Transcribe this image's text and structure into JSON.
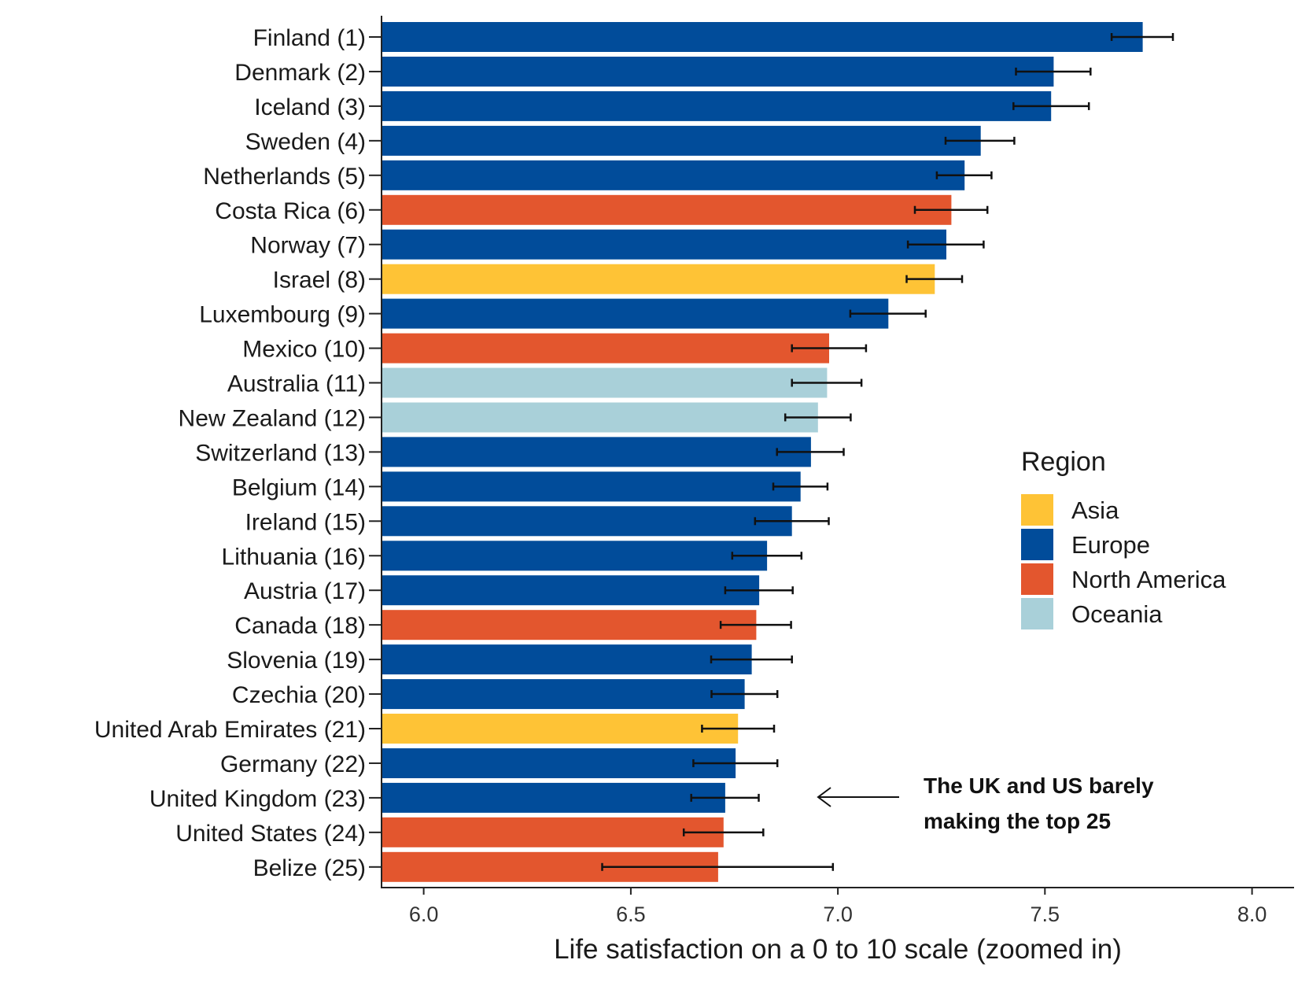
{
  "chart_data": {
    "type": "bar",
    "orientation": "horizontal",
    "title": "",
    "xlabel": "Life satisfaction on a 0 to 10 scale (zoomed in)",
    "ylabel": "",
    "xlim": [
      5.9,
      8.2
    ],
    "xticks": [
      6.0,
      6.5,
      7.0,
      7.5,
      8.0
    ],
    "xtick_labels": [
      "6.0",
      "6.5",
      "7.0",
      "7.5",
      "8.0"
    ],
    "grid": false,
    "legend": {
      "title": "Region",
      "placement": "right",
      "entries": [
        {
          "name": "Asia",
          "color": "#FEC336"
        },
        {
          "name": "Europe",
          "color": "#014C9A"
        },
        {
          "name": "North America",
          "color": "#E3562E"
        },
        {
          "name": "Oceania",
          "color": "#A9D0D9"
        }
      ]
    },
    "categories": [
      "Finland (1)",
      "Denmark (2)",
      "Iceland (3)",
      "Sweden (4)",
      "Netherlands (5)",
      "Costa Rica (6)",
      "Norway (7)",
      "Israel (8)",
      "Luxembourg (9)",
      "Mexico (10)",
      "Australia (11)",
      "New Zealand (12)",
      "Switzerland (13)",
      "Belgium (14)",
      "Ireland (15)",
      "Lithuania (16)",
      "Austria (17)",
      "Canada (18)",
      "Slovenia (19)",
      "Czechia (20)",
      "United Arab Emirates (21)",
      "Germany (22)",
      "United Kingdom (23)",
      "United States (24)",
      "Belize (25)"
    ],
    "regions": [
      "Europe",
      "Europe",
      "Europe",
      "Europe",
      "Europe",
      "North America",
      "Europe",
      "Asia",
      "Europe",
      "North America",
      "Oceania",
      "Oceania",
      "Europe",
      "Europe",
      "Europe",
      "Europe",
      "Europe",
      "North America",
      "Europe",
      "Europe",
      "Asia",
      "Europe",
      "Europe",
      "North America",
      "North America"
    ],
    "values": [
      7.736,
      7.521,
      7.515,
      7.345,
      7.306,
      7.274,
      7.262,
      7.234,
      7.122,
      6.979,
      6.974,
      6.952,
      6.935,
      6.91,
      6.889,
      6.829,
      6.81,
      6.803,
      6.792,
      6.775,
      6.759,
      6.753,
      6.728,
      6.724,
      6.711
    ],
    "error_low": [
      7.661,
      7.43,
      7.424,
      7.26,
      7.239,
      7.186,
      7.169,
      7.166,
      7.03,
      6.889,
      6.889,
      6.873,
      6.853,
      6.844,
      6.8,
      6.745,
      6.728,
      6.717,
      6.694,
      6.695,
      6.672,
      6.651,
      6.646,
      6.628,
      6.431
    ],
    "error_high": [
      7.809,
      7.61,
      7.606,
      7.426,
      7.371,
      7.361,
      7.352,
      7.3,
      7.212,
      7.068,
      7.057,
      7.031,
      7.014,
      6.975,
      6.978,
      6.912,
      6.891,
      6.887,
      6.889,
      6.854,
      6.846,
      6.854,
      6.809,
      6.82,
      6.988
    ],
    "annotation": {
      "lines": [
        "The UK and US barely",
        "making the top 25"
      ],
      "points_to": "United Kingdom (23)",
      "arrow_target_value": 6.95
    }
  }
}
